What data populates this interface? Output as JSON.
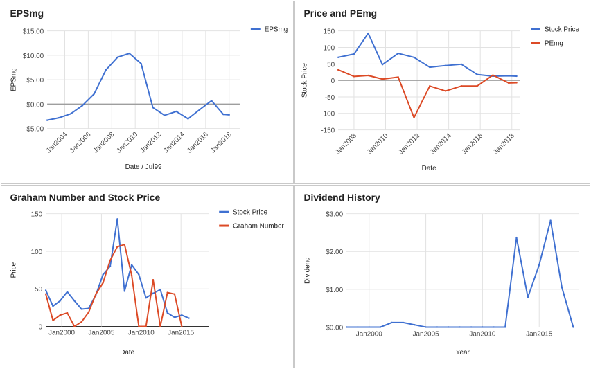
{
  "colors": {
    "blue": "#3f70d1",
    "red": "#dc4a26"
  },
  "chart_data": [
    {
      "id": "p1",
      "type": "line",
      "title": "EPSmg",
      "xlabel": "Date / Jul99",
      "ylabel": "EPSmg",
      "xlim": [
        2002.5,
        2018.9
      ],
      "ylim": [
        -5,
        15
      ],
      "grid": true,
      "legend_position": "top-right",
      "xticks": [
        {
          "v": 2004,
          "label": "Jan2004"
        },
        {
          "v": 2006,
          "label": "Jan2006"
        },
        {
          "v": 2008,
          "label": "Jan2008"
        },
        {
          "v": 2010,
          "label": "Jan2010"
        },
        {
          "v": 2012,
          "label": "Jan2012"
        },
        {
          "v": 2014,
          "label": "Jan2014"
        },
        {
          "v": 2016,
          "label": "Jan2016"
        },
        {
          "v": 2018,
          "label": "Jan2018"
        }
      ],
      "xgrid": [
        2002,
        2004,
        2006,
        2008,
        2010,
        2012,
        2014,
        2016,
        2018
      ],
      "yticks": [
        {
          "v": 15,
          "label": "$15.00"
        },
        {
          "v": 10,
          "label": "$10.00"
        },
        {
          "v": 5,
          "label": "$5.00"
        },
        {
          "v": 0,
          "label": "$0.00"
        },
        {
          "v": -5,
          "label": "-$5.00"
        }
      ],
      "series": [
        {
          "name": "EPSmg",
          "color": "#3f70d1",
          "points": [
            [
              2002.5,
              -3.3
            ],
            [
              2003.5,
              -2.8
            ],
            [
              2004.5,
              -2.0
            ],
            [
              2005.5,
              -0.3
            ],
            [
              2006.5,
              2.1
            ],
            [
              2007.5,
              7.0
            ],
            [
              2008.5,
              9.6
            ],
            [
              2009.5,
              10.4
            ],
            [
              2010.5,
              8.3
            ],
            [
              2011.5,
              -0.7
            ],
            [
              2012.5,
              -2.3
            ],
            [
              2013.5,
              -1.5
            ],
            [
              2014.5,
              -3.0
            ],
            [
              2015.5,
              -1.1
            ],
            [
              2016.5,
              0.7
            ],
            [
              2017.5,
              -2.1
            ],
            [
              2018.0,
              -2.2
            ]
          ]
        }
      ]
    },
    {
      "id": "p2",
      "type": "line",
      "title": "Price and PEmg",
      "xlabel": "Date",
      "ylabel": "Stock Price",
      "xlim": [
        2007.0,
        2018.5
      ],
      "ylim": [
        -150,
        150
      ],
      "grid": true,
      "legend_position": "top-right",
      "xticks": [
        {
          "v": 2008,
          "label": "Jan2008"
        },
        {
          "v": 2010,
          "label": "Jan2010"
        },
        {
          "v": 2012,
          "label": "Jan2012"
        },
        {
          "v": 2014,
          "label": "Jan2014"
        },
        {
          "v": 2016,
          "label": "Jan2016"
        },
        {
          "v": 2018,
          "label": "Jan2018"
        }
      ],
      "xgrid": [
        2008,
        2010,
        2012,
        2014,
        2016,
        2018
      ],
      "yticks": [
        {
          "v": 150,
          "label": "150"
        },
        {
          "v": 100,
          "label": "100"
        },
        {
          "v": 50,
          "label": "50"
        },
        {
          "v": 0,
          "label": "0"
        },
        {
          "v": -50,
          "label": "-50"
        },
        {
          "v": -100,
          "label": "-100"
        },
        {
          "v": -150,
          "label": "-150"
        }
      ],
      "series": [
        {
          "name": "Stock Price",
          "color": "#3f70d1",
          "points": [
            [
              2007.0,
              70
            ],
            [
              2008.0,
              80
            ],
            [
              2008.9,
              143
            ],
            [
              2009.8,
              48
            ],
            [
              2010.8,
              82
            ],
            [
              2011.8,
              70
            ],
            [
              2012.8,
              40
            ],
            [
              2013.8,
              45
            ],
            [
              2014.8,
              49
            ],
            [
              2015.8,
              18
            ],
            [
              2016.8,
              13
            ],
            [
              2017.8,
              14
            ],
            [
              2018.3,
              13
            ]
          ]
        },
        {
          "name": "PEmg",
          "color": "#dc4a26",
          "points": [
            [
              2007.0,
              32
            ],
            [
              2008.0,
              12
            ],
            [
              2008.9,
              15
            ],
            [
              2009.8,
              4
            ],
            [
              2010.8,
              10
            ],
            [
              2011.8,
              -113
            ],
            [
              2012.8,
              -17
            ],
            [
              2013.8,
              -32
            ],
            [
              2014.8,
              -17
            ],
            [
              2015.8,
              -17
            ],
            [
              2016.8,
              16
            ],
            [
              2017.8,
              -8
            ],
            [
              2018.3,
              -7
            ]
          ]
        }
      ]
    },
    {
      "id": "p3",
      "type": "line",
      "title": "Graham Number and Stock Price",
      "xlabel": "Date",
      "ylabel": "Price",
      "xlim": [
        1998.0,
        2018.5
      ],
      "ylim": [
        0,
        150
      ],
      "grid": true,
      "legend_position": "top-right",
      "xticks": [
        {
          "v": 2000,
          "label": "Jan2000"
        },
        {
          "v": 2005,
          "label": "Jan2005"
        },
        {
          "v": 2010,
          "label": "Jan2010"
        },
        {
          "v": 2015,
          "label": "Jan2015"
        }
      ],
      "xgrid": [
        2000,
        2005,
        2010,
        2015
      ],
      "yticks": [
        {
          "v": 150,
          "label": "150"
        },
        {
          "v": 100,
          "label": "100"
        },
        {
          "v": 50,
          "label": "50"
        },
        {
          "v": 0,
          "label": "0"
        }
      ],
      "series": [
        {
          "name": "Stock Price",
          "color": "#3f70d1",
          "points": [
            [
              1998.0,
              48
            ],
            [
              1998.9,
              27
            ],
            [
              1999.8,
              34
            ],
            [
              2000.7,
              46
            ],
            [
              2001.6,
              34
            ],
            [
              2002.5,
              23
            ],
            [
              2003.4,
              24
            ],
            [
              2004.3,
              42
            ],
            [
              2005.2,
              69
            ],
            [
              2006.1,
              80
            ],
            [
              2007.0,
              143
            ],
            [
              2007.9,
              47
            ],
            [
              2008.8,
              82
            ],
            [
              2009.7,
              69
            ],
            [
              2010.6,
              38
            ],
            [
              2011.5,
              44
            ],
            [
              2012.4,
              49
            ],
            [
              2013.3,
              18
            ],
            [
              2014.2,
              12
            ],
            [
              2015.1,
              15
            ],
            [
              2016.0,
              11
            ]
          ]
        },
        {
          "name": "Graham Number",
          "color": "#dc4a26",
          "points": [
            [
              1998.0,
              43
            ],
            [
              1998.9,
              8
            ],
            [
              1999.8,
              15
            ],
            [
              2000.7,
              18
            ],
            [
              2001.6,
              0
            ],
            [
              2002.5,
              6
            ],
            [
              2003.4,
              19
            ],
            [
              2004.3,
              43
            ],
            [
              2005.2,
              58
            ],
            [
              2006.1,
              88
            ],
            [
              2007.0,
              106
            ],
            [
              2007.9,
              109
            ],
            [
              2008.8,
              68
            ],
            [
              2009.7,
              0
            ],
            [
              2010.6,
              0
            ],
            [
              2011.5,
              62
            ],
            [
              2012.4,
              0
            ],
            [
              2013.3,
              45
            ],
            [
              2014.2,
              43
            ],
            [
              2015.1,
              0
            ]
          ]
        }
      ]
    },
    {
      "id": "p4",
      "type": "line",
      "title": "Dividend History",
      "xlabel": "Year",
      "ylabel": "Dividend",
      "xlim": [
        1998.0,
        2018.5
      ],
      "ylim": [
        0,
        3
      ],
      "grid": true,
      "xticks": [
        {
          "v": 2000,
          "label": "Jan2000"
        },
        {
          "v": 2005,
          "label": "Jan2005"
        },
        {
          "v": 2010,
          "label": "Jan2010"
        },
        {
          "v": 2015,
          "label": "Jan2015"
        }
      ],
      "xgrid": [
        2000,
        2005,
        2010,
        2015
      ],
      "yticks": [
        {
          "v": 3,
          "label": "$3.00"
        },
        {
          "v": 2,
          "label": "$2.00"
        },
        {
          "v": 1,
          "label": "$1.00"
        },
        {
          "v": 0,
          "label": "$0.00"
        }
      ],
      "series": [
        {
          "name": "",
          "color": "#3f70d1",
          "points": [
            [
              1998.0,
              0
            ],
            [
              1999.0,
              0
            ],
            [
              2000.0,
              0
            ],
            [
              2001.0,
              0
            ],
            [
              2002.0,
              0.12
            ],
            [
              2003.0,
              0.12
            ],
            [
              2004.0,
              0.06
            ],
            [
              2005.0,
              0
            ],
            [
              2006.0,
              0
            ],
            [
              2007.0,
              0
            ],
            [
              2008.0,
              0
            ],
            [
              2009.0,
              0
            ],
            [
              2010.0,
              0
            ],
            [
              2011.0,
              0
            ],
            [
              2012.0,
              0
            ],
            [
              2013.0,
              2.37
            ],
            [
              2014.0,
              0.79
            ],
            [
              2015.0,
              1.65
            ],
            [
              2016.0,
              2.82
            ],
            [
              2017.0,
              1.05
            ],
            [
              2018.0,
              0
            ]
          ]
        }
      ]
    }
  ]
}
